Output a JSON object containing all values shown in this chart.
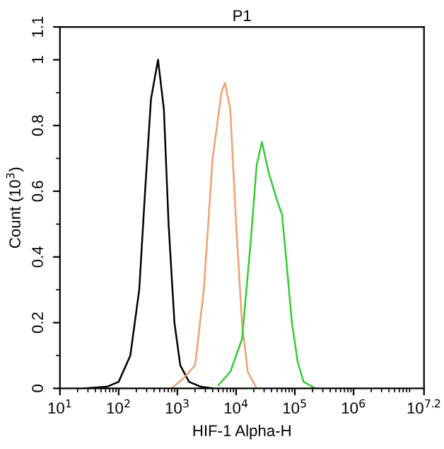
{
  "chart_data": {
    "type": "line",
    "title": "P1",
    "xlabel": "HIF-1 Alpha-H",
    "ylabel": "Count (10$^{3}$)",
    "log": "x",
    "grid": false,
    "legend": false,
    "xlim": [
      10,
      15848932
    ],
    "ylim": [
      0,
      1.1
    ],
    "xticks": [
      {
        "value": 10,
        "label": "10$^{1}$"
      },
      {
        "value": 100,
        "label": "10$^{2}$"
      },
      {
        "value": 1000,
        "label": "10$^{3}$"
      },
      {
        "value": 10000,
        "label": "10$^{4}$"
      },
      {
        "value": 100000,
        "label": "10$^{5}$"
      },
      {
        "value": 1000000,
        "label": "10$^{6}$"
      },
      {
        "value": 15848932,
        "label": "10$^{7.2}$"
      }
    ],
    "yticks": [
      0,
      0.2,
      0.4,
      0.6,
      0.8,
      1,
      1.1
    ],
    "series": [
      {
        "color": "#000000",
        "x": [
          25,
          63,
          100,
          158,
          224,
          282,
          355,
          468,
          589,
          708,
          891,
          1120,
          1580,
          2510,
          3980
        ],
        "values": [
          0,
          0.005,
          0.02,
          0.1,
          0.3,
          0.6,
          0.88,
          1.0,
          0.85,
          0.5,
          0.2,
          0.07,
          0.02,
          0.005,
          0
        ]
      },
      {
        "color": "#f0a070",
        "x": [
          794,
          1260,
          2000,
          2820,
          3980,
          5620,
          6460,
          7940,
          10000,
          12600,
          15800,
          22400
        ],
        "values": [
          0,
          0.03,
          0.07,
          0.3,
          0.7,
          0.9,
          0.93,
          0.85,
          0.5,
          0.2,
          0.05,
          0
        ]
      },
      {
        "color": "#33cc33",
        "x": [
          5010,
          7940,
          12600,
          17800,
          22400,
          27500,
          35500,
          50100,
          60300,
          70800,
          89100,
          112000,
          141000,
          224000
        ],
        "values": [
          0.01,
          0.05,
          0.15,
          0.45,
          0.68,
          0.75,
          0.66,
          0.57,
          0.53,
          0.4,
          0.2,
          0.08,
          0.02,
          0
        ]
      }
    ]
  }
}
